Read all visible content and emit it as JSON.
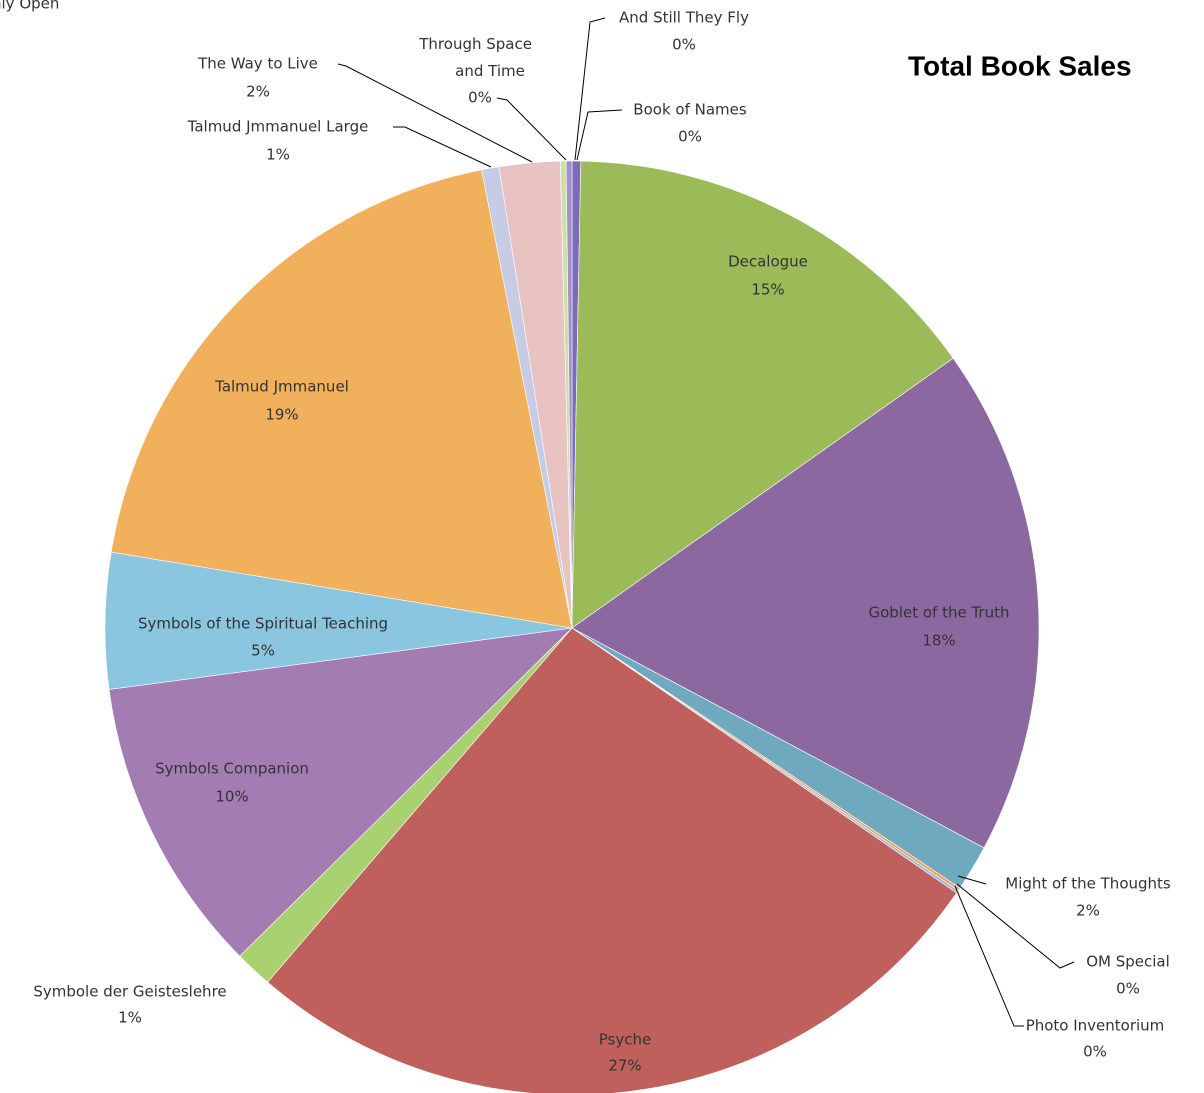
{
  "chart_data": {
    "type": "pie",
    "title": "Total Book Sales",
    "subtitle": "nly Open",
    "categories": [
      "Book of Names",
      "Decalogue",
      "Goblet of the Truth",
      "Might of the Thoughts",
      "OM Special",
      "Photo Inventorium",
      "Psyche",
      "Symbole der Geisteslehre",
      "Symbols Companion",
      "Symbols of the Spiritual Teaching",
      "Talmud Jmmanuel",
      "Talmud Jmmanuel Large",
      "The Way to Live",
      "Through Space and Time",
      "And Still They Fly"
    ],
    "values": [
      0.3,
      14.9,
      17.6,
      1.6,
      0.1,
      0.1,
      26.7,
      1.3,
      10.3,
      4.7,
      19.3,
      0.6,
      2.1,
      0.2,
      0.2
    ],
    "value_labels": [
      "0%",
      "15%",
      "18%",
      "2%",
      "0%",
      "0%",
      "27%",
      "1%",
      "10%",
      "5%",
      "19%",
      "1%",
      "2%",
      "0%",
      "0%"
    ],
    "colors": [
      "#7b6bb8",
      "#9bbb59",
      "#8c68a0",
      "#6fa9bf",
      "#f0a050",
      "#a0b8d8",
      "#c0605c",
      "#a9d16f",
      "#a47cb4",
      "#8ac6df",
      "#f1b15c",
      "#c6cbe6",
      "#e9c3c2",
      "#cde0a8",
      "#a090c8"
    ]
  }
}
